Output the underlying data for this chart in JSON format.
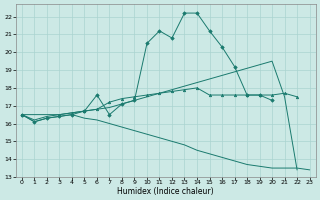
{
  "xlabel": "Humidex (Indice chaleur)",
  "xlim": [
    -0.5,
    23.5
  ],
  "ylim": [
    13,
    22.7
  ],
  "yticks": [
    13,
    14,
    15,
    16,
    17,
    18,
    19,
    20,
    21,
    22
  ],
  "xticks": [
    0,
    1,
    2,
    3,
    4,
    5,
    6,
    7,
    8,
    9,
    10,
    11,
    12,
    13,
    14,
    15,
    16,
    17,
    18,
    19,
    20,
    21,
    22,
    23
  ],
  "background_color": "#cce9e5",
  "grid_color": "#aad4d0",
  "line_color": "#1a7a6e",
  "curve1_x": [
    0,
    1,
    2,
    3,
    4,
    5,
    6,
    7,
    8,
    9,
    10,
    11,
    12,
    13,
    14,
    15,
    16,
    17,
    18,
    19,
    20
  ],
  "curve1_y": [
    16.5,
    16.1,
    16.3,
    16.4,
    16.5,
    16.7,
    17.6,
    16.5,
    17.1,
    17.3,
    20.5,
    21.2,
    20.8,
    22.2,
    22.2,
    21.2,
    20.3,
    19.2,
    17.6,
    17.6,
    17.3
  ],
  "curve2_x": [
    0,
    1,
    2,
    3,
    4,
    5,
    6,
    7,
    8,
    9,
    10,
    11,
    12,
    13,
    14,
    15,
    16,
    17,
    18,
    19,
    20,
    21,
    22
  ],
  "curve2_y": [
    16.5,
    16.2,
    16.4,
    16.5,
    16.6,
    16.7,
    16.8,
    16.9,
    17.1,
    17.3,
    17.5,
    17.7,
    17.9,
    18.1,
    18.3,
    18.5,
    18.7,
    18.9,
    19.1,
    19.3,
    19.5,
    17.5,
    13.4
  ],
  "curve3_x": [
    0,
    1,
    2,
    3,
    4,
    5,
    6,
    7,
    8,
    9,
    10,
    11,
    12,
    13,
    14,
    15,
    16,
    17,
    18,
    19,
    20,
    21,
    22,
    23
  ],
  "curve3_y": [
    16.5,
    16.1,
    16.3,
    16.4,
    16.5,
    16.3,
    16.2,
    16.0,
    15.8,
    15.6,
    15.4,
    15.2,
    15.0,
    14.8,
    14.5,
    14.3,
    14.1,
    13.9,
    13.7,
    13.6,
    13.5,
    13.5,
    13.5,
    13.4
  ],
  "curve4_x": [
    0,
    3,
    4,
    5,
    6,
    7,
    8,
    9,
    10,
    11,
    12,
    13,
    14,
    15,
    16,
    17,
    18,
    19,
    20,
    21,
    22
  ],
  "curve4_y": [
    16.5,
    16.5,
    16.6,
    16.7,
    16.8,
    17.2,
    17.4,
    17.5,
    17.6,
    17.7,
    17.8,
    17.9,
    18.0,
    17.6,
    17.6,
    17.6,
    17.6,
    17.6,
    17.6,
    17.7,
    17.5
  ]
}
